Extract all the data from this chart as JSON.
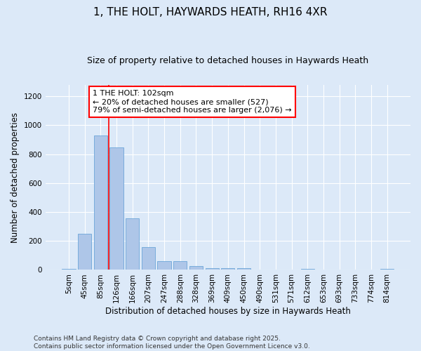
{
  "title": "1, THE HOLT, HAYWARDS HEATH, RH16 4XR",
  "subtitle": "Size of property relative to detached houses in Haywards Heath",
  "xlabel": "Distribution of detached houses by size in Haywards Heath",
  "ylabel": "Number of detached properties",
  "categories": [
    "5sqm",
    "45sqm",
    "85sqm",
    "126sqm",
    "166sqm",
    "207sqm",
    "247sqm",
    "288sqm",
    "328sqm",
    "369sqm",
    "409sqm",
    "450sqm",
    "490sqm",
    "531sqm",
    "571sqm",
    "612sqm",
    "653sqm",
    "693sqm",
    "733sqm",
    "774sqm",
    "814sqm"
  ],
  "values": [
    8,
    248,
    930,
    848,
    358,
    157,
    62,
    62,
    28,
    14,
    12,
    12,
    0,
    0,
    0,
    9,
    0,
    0,
    0,
    0,
    9
  ],
  "bar_color": "#aec6e8",
  "bar_edge_color": "#5b9bd5",
  "vline_x_index": 2,
  "vline_color": "red",
  "annotation_text": "1 THE HOLT: 102sqm\n← 20% of detached houses are smaller (527)\n79% of semi-detached houses are larger (2,076) →",
  "annotation_box_color": "white",
  "annotation_box_edge": "red",
  "ylim": [
    0,
    1280
  ],
  "yticks": [
    0,
    200,
    400,
    600,
    800,
    1000,
    1200
  ],
  "background_color": "#dce9f8",
  "grid_color": "white",
  "footer": "Contains HM Land Registry data © Crown copyright and database right 2025.\nContains public sector information licensed under the Open Government Licence v3.0.",
  "title_fontsize": 11,
  "subtitle_fontsize": 9,
  "xlabel_fontsize": 8.5,
  "ylabel_fontsize": 8.5,
  "tick_fontsize": 7.5,
  "footer_fontsize": 6.5,
  "annotation_fontsize": 8
}
